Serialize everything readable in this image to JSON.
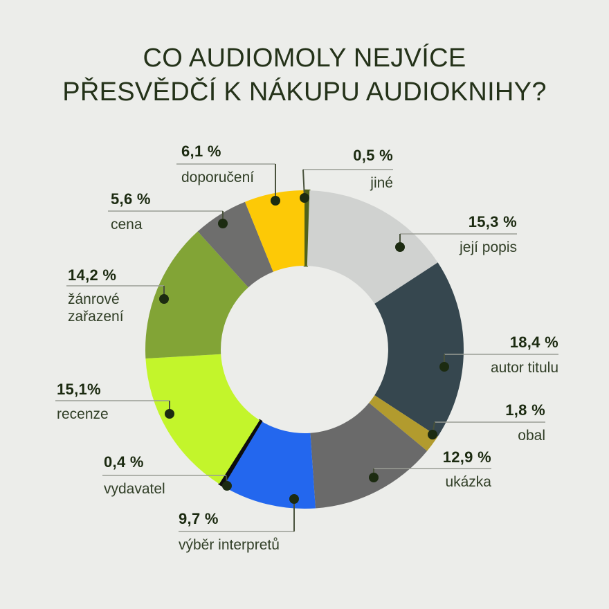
{
  "title": {
    "line1": "CO AUDIOMOLY NEJVÍCE",
    "line2": "PŘESVĚDČÍ K NÁKUPU AUDIOKNIHY?"
  },
  "colors": {
    "background": "#ecedea",
    "title_text": "#243219",
    "percent_text": "#1b2a10",
    "label_text": "#303e26",
    "callout_line": "#9a9d95",
    "callout_connector": "#49523c",
    "marker_dot": "#1c2b11"
  },
  "chart_data": {
    "type": "pie",
    "subtype": "donut",
    "title": "CO AUDIOMOLY NEJVÍCE PŘESVĚDČÍ K NÁKUPU AUDIOKNIHY?",
    "start_angle_deg_from_top_clockwise": 0,
    "legend_position": "callout-labels",
    "segments": [
      {
        "label": "jiné",
        "value": 0.5,
        "pct": "0,5 %",
        "color": "#50621b"
      },
      {
        "label": "její popis",
        "value": 15.3,
        "pct": "15,3 %",
        "color": "#d0d2d0"
      },
      {
        "label": "autor titulu",
        "value": 18.4,
        "pct": "18,4 %",
        "color": "#36474f"
      },
      {
        "label": "obal",
        "value": 1.8,
        "pct": "1,8 %",
        "color": "#b29b2e"
      },
      {
        "label": "ukázka",
        "value": 12.9,
        "pct": "12,9 %",
        "color": "#6a6a6a"
      },
      {
        "label": "výběr interpretů",
        "value": 9.7,
        "pct": "9,7 %",
        "color": "#2367ee"
      },
      {
        "label": "vydavatel",
        "value": 0.4,
        "pct": "0,4 %",
        "color": "#0d0d0d"
      },
      {
        "label": "recenze",
        "value": 15.1,
        "pct": "15,1%",
        "color": "#c3f52b"
      },
      {
        "label": "žánrové zařazení",
        "value": 14.2,
        "pct": "14,2 %",
        "color": "#82a436"
      },
      {
        "label": "cena",
        "value": 5.6,
        "pct": "5,6 %",
        "color": "#6e6e6d"
      },
      {
        "label": "doporučení",
        "value": 6.1,
        "pct": "6,1 %",
        "color": "#fdc906"
      }
    ]
  }
}
